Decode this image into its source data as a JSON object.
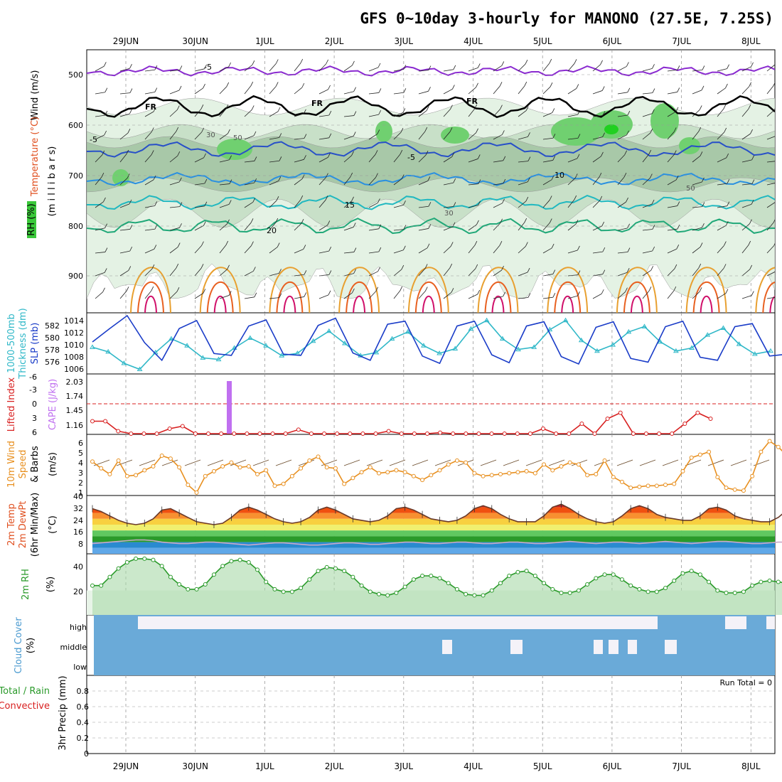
{
  "title": "GFS 0~10day 3-hourly for MANONO (27.5E, 7.25S)",
  "dates": [
    "29JUN",
    "30JUN",
    "1JUL",
    "2JUL",
    "3JUL",
    "4JUL",
    "5JUL",
    "6JUL",
    "7JUL",
    "8JUL"
  ],
  "panels": {
    "upper": {
      "labels": [
        "Wind (m/s)",
        "Temperature (°C)",
        "RH (%)",
        "(m i l l i b a r s)"
      ],
      "y_ticks": [
        "500",
        "600",
        "700",
        "800",
        "900"
      ],
      "contour_labels": [
        "-5",
        "FR",
        "-5",
        "10",
        "15",
        "20",
        "30",
        "50"
      ]
    },
    "slp": {
      "labels": [
        "1000-500mb",
        "Thickness (dm)",
        "SLP (mb)"
      ],
      "thickness_ticks": [
        "582",
        "580",
        "578",
        "576"
      ],
      "slp_ticks": [
        "1014",
        "1012",
        "1010",
        "1008",
        "1006"
      ]
    },
    "cape": {
      "labels": [
        "Lifted Index",
        "CAPE (J/kg)"
      ],
      "li_ticks": [
        "-6",
        "-3",
        "0",
        "3",
        "6"
      ],
      "cape_ticks": [
        "2.03",
        "1.74",
        "1.45",
        "1.16"
      ]
    },
    "wind10": {
      "labels": [
        "10m Wind",
        "Speed",
        "& Barbs",
        "(m/s)"
      ],
      "ticks": [
        "6",
        "5",
        "4",
        "3",
        "2",
        "1",
        "0"
      ]
    },
    "temp2m": {
      "labels": [
        "2m Temp",
        "2m DewPt",
        "(6hr Min/Max)",
        "(°C)"
      ],
      "ticks": [
        "40",
        "32",
        "24",
        "16",
        "8"
      ]
    },
    "rh2m": {
      "labels": [
        "2m RH",
        "(%)"
      ],
      "ticks": [
        "40",
        "20"
      ]
    },
    "cloud": {
      "labels": [
        "Cloud Cover",
        "(%)"
      ],
      "levels": [
        "high",
        "middle",
        "low"
      ]
    },
    "precip": {
      "labels": [
        "Total / Rain",
        "Convective",
        "3hr Precip (mm)"
      ],
      "ticks": [
        "0.8",
        "0.6",
        "0.4",
        "0.2",
        "0"
      ],
      "run_total": "Run Total = 0"
    }
  },
  "colors": {
    "slp": "#1a3cc8",
    "thickness": "#30b8c8",
    "lifted": "#d82020",
    "cape": "#c070f0",
    "wind_speed": "#e89020",
    "rh": "#2a9a2a",
    "cloud": "#6aaad8",
    "temp_line": "#6a3a2a"
  },
  "chart_data": [
    {
      "type": "line",
      "title": "Sea Level Pressure",
      "ylabel": "SLP (mb)",
      "ylim": [
        1005,
        1015
      ],
      "x_step_hours": 3,
      "values": [
        1010.2,
        1009.3,
        1011.5,
        1012.3,
        1011.9,
        1013.0,
        1014.4,
        1013.2,
        1010.8,
        1008.0,
        1006.8,
        1008.3,
        1011.2,
        1012.1,
        1011.5,
        1012.8,
        1013.4,
        1011.5,
        1008.8,
        1007.1,
        1007.2,
        1009.2,
        1011.4,
        1012.6,
        1011.8,
        1012.9,
        1013.4,
        1011.2,
        1008.6,
        1007.0,
        1007.3,
        1009.0,
        1011.6,
        1012.4,
        1011.6,
        1013.1,
        1013.6,
        1011.4,
        1008.3,
        1006.6,
        1006.8,
        1009.4,
        1011.6,
        1012.9,
        1012.0,
        1013.4,
        1013.7,
        1011.0,
        1008.2,
        1006.8,
        1006.9,
        1009.2,
        1011.3,
        1012.7,
        1011.6,
        1013.0,
        1013.4,
        1010.9,
        1007.9,
        1006.1,
        1006.8,
        1009.3,
        1011.5,
        1012.3,
        1011.5,
        1012.9,
        1013.5,
        1011.0,
        1008.2,
        1006.6,
        1006.9,
        1009.3,
        1011.4,
        1012.6,
        1011.6,
        1012.9,
        1013.5,
        1010.9,
        1008.1,
        1006.3,
        1006.7,
        1009.2,
        1011.4,
        1012.6,
        1011.6,
        1012.9,
        1013.4,
        1010.8,
        1008.1,
        1006.5,
        1006.9,
        1009.1,
        1011.2,
        1012.4,
        1011.4,
        1012.9,
        1013.2,
        1010.6,
        1008.0,
        1006.6,
        1007.3,
        1009.6,
        1011.1,
        1012.6
      ]
    },
    {
      "type": "line",
      "title": "Sea Level Pressure",
      "ylabel": "SLP (mb)",
      "ylim": [
        1005,
        1015
      ],
      "x_step_hours": 6,
      "values": [
        1010.0,
        1012.2,
        1014.3,
        1009.9,
        1007.0,
        1012.2,
        1013.5,
        1008.1,
        1007.8,
        1012.6,
        1013.6,
        1008.0,
        1007.8,
        1012.7,
        1013.9,
        1008.2,
        1007.0,
        1012.9,
        1013.4,
        1007.7,
        1006.5,
        1012.6,
        1013.4,
        1007.9,
        1006.6,
        1012.6,
        1013.3,
        1007.6,
        1006.4,
        1012.4,
        1013.3,
        1007.3,
        1006.7,
        1012.5,
        1013.4,
        1007.5,
        1007.0,
        1012.5,
        1013.0,
        1007.7,
        1008.0
      ]
    },
    {
      "type": "line",
      "title": "1000-500mb Thickness",
      "ylabel": "Thickness (dm)",
      "ylim": [
        575,
        583
      ],
      "x_step_hours": 6,
      "values": [
        578.5,
        577.9,
        576.4,
        575.6,
        577.8,
        579.6,
        578.7,
        577.1,
        576.9,
        578.4,
        579.7,
        578.7,
        577.4,
        577.7,
        579.3,
        580.6,
        579.0,
        577.4,
        577.8,
        579.6,
        580.5,
        578.7,
        577.7,
        578.3,
        580.9,
        582.0,
        579.6,
        578.2,
        578.5,
        580.8,
        582.0,
        579.4,
        578.0,
        578.8,
        580.5,
        581.2,
        579.2,
        578.0,
        578.4,
        580.1,
        581.0,
        578.9,
        577.6,
        578.0
      ]
    },
    {
      "type": "line",
      "title": "Lifted Index",
      "ylabel": "Lifted Index",
      "ylim": [
        6,
        -6
      ],
      "x_step_hours": 6,
      "values": [
        3.5,
        3.5,
        5.5,
        6,
        6,
        6,
        5,
        4.5,
        6,
        6,
        6,
        6,
        6,
        6,
        6,
        6,
        5.2,
        6,
        6,
        6,
        6,
        6,
        6,
        5.5,
        6,
        6,
        6,
        5.8,
        6,
        6,
        6,
        6,
        6,
        6,
        6,
        5,
        6,
        6,
        4,
        6,
        3,
        1.8,
        6,
        6,
        6,
        6,
        4,
        1.8,
        3
      ]
    },
    {
      "type": "bar",
      "title": "CAPE",
      "ylabel": "CAPE (J/kg)",
      "ylim": [
        1.0,
        2.1
      ],
      "categories": [
        "30JUN 12Z"
      ],
      "values": [
        2.03
      ]
    },
    {
      "type": "line",
      "title": "10m Wind Speed",
      "ylabel": "m/s",
      "ylim": [
        0,
        6
      ],
      "x_step_hours": 3,
      "values": [
        3.5,
        2.8,
        2.2,
        3.6,
        2.0,
        2.1,
        2.6,
        3.0,
        4.1,
        3.8,
        2.9,
        1.1,
        0.3,
        2.0,
        2.5,
        3.0,
        3.4,
        2.9,
        3.0,
        2.2,
        2.6,
        1.0,
        1.2,
        2.0,
        2.8,
        3.6,
        4.0,
        2.9,
        2.8,
        1.2,
        1.8,
        2.4,
        2.9,
        2.3,
        2.4,
        2.6,
        2.4,
        2.0,
        1.6,
        2.1,
        2.6,
        3.2,
        3.6,
        3.4,
        2.3,
        2.0,
        2.1,
        2.2,
        2.3,
        2.4,
        2.5,
        2.3,
        3.2,
        2.6,
        3.0,
        3.4,
        3.2,
        2.1,
        2.2,
        3.6,
        1.9,
        1.4,
        0.8,
        0.9,
        1.0,
        1.0,
        1.1,
        1.2,
        2.5,
        3.9,
        4.2,
        4.5,
        1.9,
        0.8,
        0.6,
        0.5,
        2.0,
        4.5,
        5.6,
        5.0,
        4.1,
        3.0,
        0.3,
        1.8,
        1.2,
        1.9,
        2.5,
        3.9,
        4.8,
        4.6,
        1.2,
        0.5,
        1.8,
        1.5,
        1.5,
        1.7,
        1.5,
        2.4,
        3.6,
        4.1
      ]
    },
    {
      "type": "line",
      "title": "2m Temperature",
      "ylabel": "°C",
      "ylim": [
        0,
        40
      ],
      "x_step_hours": 3,
      "values": [
        31,
        29,
        26,
        23,
        21,
        20,
        21,
        24,
        30,
        31,
        28,
        25,
        22,
        21,
        20,
        21,
        25,
        30,
        32,
        30,
        27,
        24,
        22,
        21,
        22,
        25,
        30,
        32,
        30,
        27,
        24,
        23,
        22,
        23,
        26,
        31,
        32,
        30,
        27,
        24,
        23,
        22,
        23,
        26,
        31,
        33,
        31,
        27,
        24,
        22,
        22,
        22,
        26,
        32,
        34,
        31,
        27,
        24,
        22,
        21,
        22,
        26,
        31,
        33,
        31,
        27,
        25,
        24,
        23,
        23,
        26,
        31,
        32,
        30,
        26,
        24,
        23,
        22,
        22,
        25,
        30,
        32,
        30,
        26,
        24,
        23,
        22,
        22,
        24,
        30,
        32,
        30,
        27,
        25,
        24,
        22,
        21,
        23
      ]
    },
    {
      "type": "line",
      "title": "2m Dew Point",
      "ylabel": "°C",
      "ylim": [
        0,
        40
      ],
      "x_step_hours": 3,
      "values": [
        7,
        7.5,
        8,
        8.5,
        9,
        9.5,
        9.5,
        9,
        8,
        7.5,
        7,
        7,
        7.5,
        8,
        8,
        7.5,
        7,
        6.5,
        6,
        6.5,
        7,
        7.5,
        7.5,
        7,
        6.5,
        6,
        6,
        6.5,
        7,
        7.5,
        7.5,
        7,
        6.5,
        6.5,
        7,
        7.5,
        8,
        8,
        7.5,
        7,
        7,
        7.5,
        8,
        8,
        7.5,
        7,
        7,
        7.5,
        8,
        8,
        7.5,
        7,
        7,
        7.5,
        8,
        8.5,
        8,
        7.5,
        7,
        7.5,
        8,
        8,
        7.5,
        7,
        7.5,
        8,
        8.5,
        8,
        7.5,
        7,
        7.5,
        8,
        8.5,
        8.5,
        8,
        7.5,
        7,
        7,
        7.5,
        8,
        8,
        7.5,
        7,
        6.5,
        6,
        6.5,
        7,
        7.5,
        7.5,
        7,
        6.5,
        6,
        5.5,
        5,
        4
      ]
    },
    {
      "type": "area",
      "title": "2m Relative Humidity",
      "ylabel": "%",
      "ylim": [
        0,
        50
      ],
      "x_step_hours": 3,
      "values": [
        24,
        24,
        31,
        38,
        43,
        46,
        46,
        45,
        40,
        31,
        25,
        21,
        21,
        25,
        33,
        40,
        44,
        45,
        43,
        37,
        27,
        21,
        19,
        19,
        22,
        29,
        36,
        39,
        38,
        36,
        31,
        24,
        19,
        17,
        16,
        18,
        23,
        29,
        32,
        32,
        30,
        26,
        21,
        17,
        16,
        16,
        20,
        26,
        32,
        35,
        36,
        32,
        26,
        21,
        18,
        18,
        20,
        25,
        30,
        33,
        33,
        29,
        24,
        21,
        19,
        19,
        22,
        28,
        34,
        36,
        33,
        27,
        20,
        18,
        18,
        19,
        24,
        27,
        28,
        27,
        26,
        27,
        24,
        20,
        19,
        19,
        22,
        28,
        34,
        36,
        32,
        26,
        21,
        18,
        18,
        19,
        24,
        30,
        32,
        33,
        23
      ]
    }
  ]
}
